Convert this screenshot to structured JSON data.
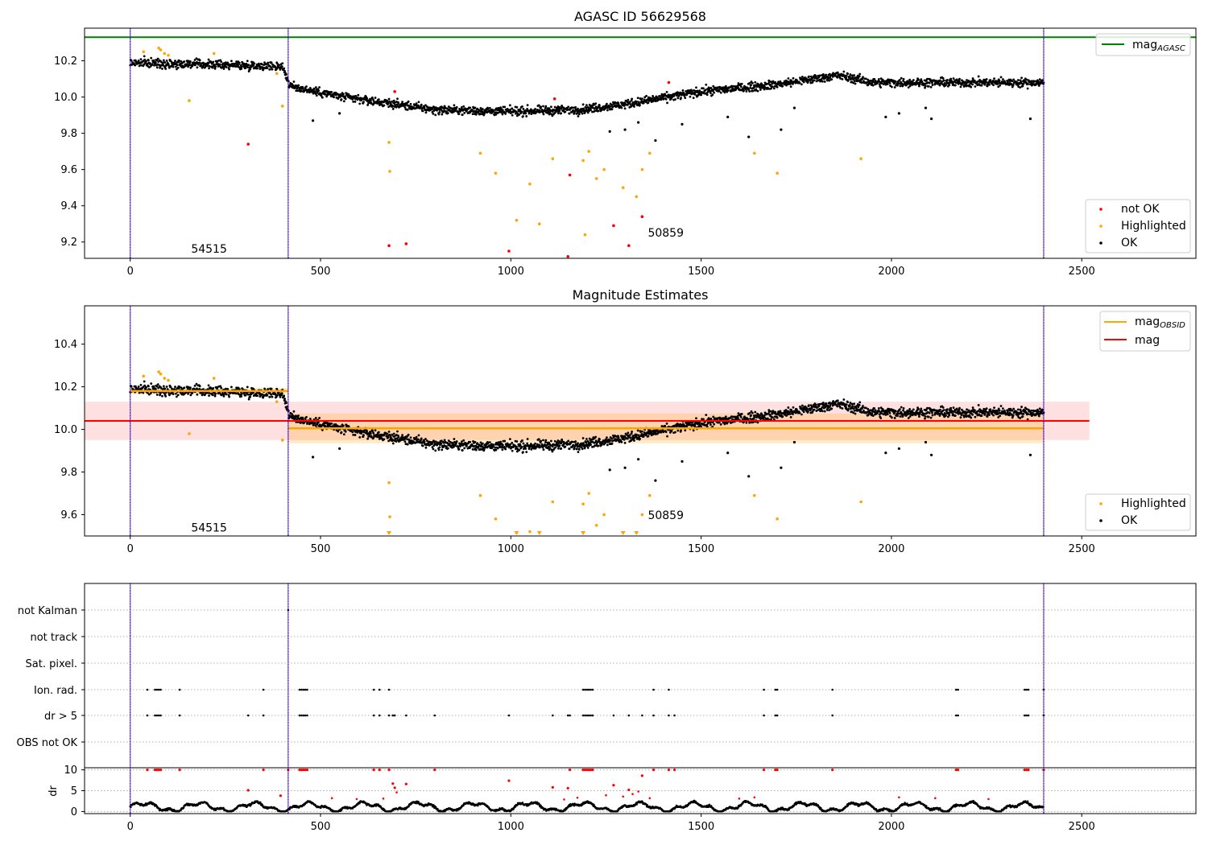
{
  "chart_data": [
    {
      "type": "scatter",
      "title": "AGASC ID 56629568",
      "xlim": [
        -120,
        2800
      ],
      "ylim": [
        9.11,
        10.38
      ],
      "x_ticks": [
        0,
        500,
        1000,
        1500,
        2000,
        2500
      ],
      "y_ticks": [
        9.2,
        9.4,
        9.6,
        9.8,
        10.0,
        10.2
      ],
      "y_tick_labels": [
        "9.2",
        "9.4",
        "9.6",
        "9.8",
        "10.0",
        "10.2"
      ],
      "vlines": [
        0,
        415,
        2400
      ],
      "hline": {
        "name": "mag_AGASC",
        "y": 10.33,
        "color": "#008000"
      },
      "obs_labels": [
        {
          "text": "54515",
          "x": 160,
          "y": 9.14
        },
        {
          "text": "50859",
          "x": 1360,
          "y": 9.23
        }
      ],
      "legend_top": [
        {
          "label": "mag",
          "sub": "AGASC",
          "color": "#008000",
          "kind": "line"
        }
      ],
      "legend_bottom": [
        {
          "label": "not OK",
          "color": "#ff0000",
          "kind": "dot"
        },
        {
          "label": "Highlighted",
          "color": "#ffa500",
          "kind": "dot"
        },
        {
          "label": "OK",
          "color": "#000000",
          "kind": "dot"
        }
      ],
      "series": [
        {
          "name": "not OK",
          "color": "#ff0000",
          "x": [
            310,
            680,
            695,
            725,
            995,
            1115,
            1150,
            1155,
            1270,
            1310,
            1345,
            1415
          ],
          "y": [
            9.74,
            9.18,
            10.03,
            9.19,
            9.15,
            9.99,
            9.12,
            9.57,
            9.29,
            9.18,
            9.34,
            10.08
          ]
        },
        {
          "name": "Highlighted",
          "color": "#ffa500",
          "x": [
            35,
            75,
            80,
            90,
            100,
            155,
            220,
            385,
            400,
            680,
            682,
            920,
            960,
            1050,
            1015,
            1075,
            1110,
            1190,
            1205,
            1225,
            1245,
            1295,
            1330,
            1345,
            1365,
            1640,
            1700,
            1920,
            1195
          ],
          "y": [
            10.25,
            10.27,
            10.26,
            10.24,
            10.23,
            9.98,
            10.24,
            10.13,
            9.95,
            9.75,
            9.59,
            9.69,
            9.58,
            9.52,
            9.32,
            9.3,
            9.66,
            9.65,
            9.7,
            9.55,
            9.6,
            9.5,
            9.45,
            9.6,
            9.69,
            9.69,
            9.58,
            9.66,
            9.24
          ]
        },
        {
          "name": "OK",
          "color": "#000000",
          "model": "trend",
          "trend_x": [
            0,
            400,
            420,
            560,
            800,
            1000,
            1180,
            1300,
            1500,
            1700,
            1860,
            1950,
            2150,
            2300,
            2400
          ],
          "trend_y": [
            10.19,
            10.17,
            10.06,
            10.0,
            9.93,
            9.92,
            9.93,
            9.96,
            10.03,
            10.07,
            10.12,
            10.08,
            10.08,
            10.08,
            10.08
          ],
          "outliers_x": [
            480,
            550,
            1260,
            1300,
            1335,
            1380,
            1450,
            1570,
            1625,
            1710,
            1745,
            1985,
            2020,
            2090,
            2105,
            2365
          ],
          "outliers_y": [
            9.87,
            9.91,
            9.81,
            9.82,
            9.86,
            9.76,
            9.85,
            9.89,
            9.78,
            9.82,
            9.94,
            9.89,
            9.91,
            9.94,
            9.88,
            9.88
          ]
        }
      ]
    },
    {
      "type": "scatter",
      "title": "Magnitude Estimates",
      "xlim": [
        -120,
        2800
      ],
      "ylim": [
        9.5,
        10.58
      ],
      "x_ticks": [
        0,
        500,
        1000,
        1500,
        2000,
        2500
      ],
      "y_ticks": [
        9.6,
        9.8,
        10.0,
        10.2,
        10.4
      ],
      "y_tick_labels": [
        "9.6",
        "9.8",
        "10.0",
        "10.2",
        "10.4"
      ],
      "vlines": [
        0,
        415,
        2400
      ],
      "obs_labels": [
        {
          "text": "54515",
          "x": 160,
          "y": 9.52
        },
        {
          "text": "50859",
          "x": 1360,
          "y": 9.58
        }
      ],
      "mag": {
        "y": 10.04,
        "band": [
          9.95,
          10.13
        ],
        "x_range": [
          -120,
          2520
        ],
        "color": "#ff0000"
      },
      "mag_obsid": [
        {
          "x_range": [
            0,
            415
          ],
          "y": 10.18,
          "band": [
            10.165,
            10.195
          ]
        },
        {
          "x_range": [
            415,
            2400
          ],
          "y": 10.005,
          "band": [
            9.935,
            10.075
          ]
        }
      ],
      "legend_top": [
        {
          "label": "mag",
          "sub": "OBSID",
          "color": "#ffa500",
          "kind": "line"
        },
        {
          "label": "mag",
          "sub": "",
          "color": "#ff0000",
          "kind": "line"
        }
      ],
      "legend_bottom": [
        {
          "label": "Highlighted",
          "color": "#ffa500",
          "kind": "dot"
        },
        {
          "label": "OK",
          "color": "#000000",
          "kind": "dot"
        }
      ],
      "offscale_markers_x": [
        680,
        1015,
        1075,
        1190,
        1295,
        1330
      ],
      "series": [
        {
          "name": "Highlighted",
          "color": "#ffa500",
          "x": [
            35,
            75,
            80,
            90,
            100,
            155,
            220,
            385,
            400,
            680,
            682,
            920,
            960,
            1050,
            1110,
            1190,
            1205,
            1225,
            1245,
            1345,
            1365,
            1640,
            1700,
            1920
          ],
          "y": [
            10.25,
            10.27,
            10.26,
            10.24,
            10.23,
            9.98,
            10.24,
            10.13,
            9.95,
            9.75,
            9.59,
            9.69,
            9.58,
            9.52,
            9.66,
            9.65,
            9.7,
            9.55,
            9.6,
            9.6,
            9.69,
            9.69,
            9.58,
            9.66
          ]
        },
        {
          "name": "OK",
          "color": "#000000",
          "model": "trend",
          "trend_x": [
            0,
            400,
            420,
            560,
            800,
            1000,
            1180,
            1300,
            1500,
            1700,
            1860,
            1950,
            2150,
            2300,
            2400
          ],
          "trend_y": [
            10.19,
            10.17,
            10.06,
            10.0,
            9.93,
            9.92,
            9.93,
            9.96,
            10.03,
            10.07,
            10.12,
            10.08,
            10.08,
            10.08,
            10.08
          ],
          "outliers_x": [
            480,
            550,
            1260,
            1300,
            1335,
            1380,
            1450,
            1570,
            1625,
            1710,
            1745,
            1985,
            2020,
            2090,
            2105,
            2365
          ],
          "outliers_y": [
            9.87,
            9.91,
            9.81,
            9.82,
            9.86,
            9.76,
            9.85,
            9.89,
            9.78,
            9.82,
            9.94,
            9.89,
            9.91,
            9.94,
            9.88,
            9.88
          ]
        }
      ]
    },
    {
      "type": "scatter",
      "title": "",
      "xlim": [
        -120,
        2800
      ],
      "x_ticks": [
        0,
        500,
        1000,
        1500,
        2000,
        2500
      ],
      "vlines": [
        0,
        415,
        2400
      ],
      "flag_rows": [
        "not Kalman",
        "not track",
        "Sat. pixel.",
        "Ion. rad.",
        "dr > 5",
        "OBS not OK"
      ],
      "flags": {
        "not Kalman": [
          415
        ],
        "not track": [],
        "Sat. pixel.": [],
        "Ion. rad.": [
          45,
          65,
          70,
          75,
          80,
          130,
          350,
          445,
          450,
          455,
          460,
          465,
          640,
          655,
          680,
          1190,
          1195,
          1200,
          1205,
          1210,
          1215,
          1375,
          1415,
          1665,
          1695,
          1700,
          1845,
          2170,
          2175,
          2350,
          2355,
          2360,
          2400
        ],
        "dr > 5": [
          45,
          65,
          70,
          75,
          80,
          130,
          310,
          350,
          445,
          450,
          455,
          460,
          465,
          640,
          655,
          680,
          690,
          695,
          725,
          800,
          995,
          1110,
          1150,
          1155,
          1190,
          1195,
          1200,
          1205,
          1210,
          1215,
          1270,
          1310,
          1345,
          1375,
          1415,
          1430,
          1665,
          1695,
          1700,
          1845,
          2170,
          2175,
          2350,
          2355,
          2360,
          2400
        ],
        "OBS not OK": []
      },
      "dr": {
        "ylabel": "dr",
        "ylim": [
          -0.5,
          10.5
        ],
        "y_ticks": [
          0,
          5,
          10
        ],
        "y_tick_labels": [
          "0",
          "5",
          "10"
        ],
        "bulk_color": "#000000",
        "flag_color": "#ff0000",
        "flagged_x": [
          45,
          65,
          70,
          75,
          80,
          130,
          310,
          350,
          395,
          415,
          445,
          450,
          455,
          460,
          465,
          640,
          655,
          680,
          690,
          695,
          725,
          800,
          995,
          1110,
          1150,
          1155,
          1190,
          1195,
          1200,
          1205,
          1210,
          1215,
          1270,
          1310,
          1345,
          1375,
          1415,
          1430,
          1665,
          1695,
          1700,
          1845,
          2170,
          2175,
          2350,
          2355,
          2360,
          2400
        ],
        "flagged_y": [
          10,
          10,
          10,
          10,
          10,
          10,
          5.1,
          10,
          3.8,
          10,
          10,
          10,
          10,
          10,
          10,
          10,
          10,
          10,
          6.7,
          5.7,
          6.6,
          10,
          7.4,
          5.8,
          5.6,
          10,
          10,
          10,
          10,
          10,
          10,
          10,
          6.3,
          5.2,
          8.6,
          10,
          10,
          10,
          10,
          10,
          10,
          10,
          10,
          10,
          10,
          10,
          10,
          10
        ],
        "mid_x": [
          530,
          595,
          665,
          700,
          1140,
          1175,
          1250,
          1295,
          1320,
          1335,
          1365,
          1600,
          1640,
          2020,
          2115,
          2255
        ],
        "mid_y": [
          3.2,
          3.0,
          3.1,
          4.6,
          2.9,
          3.3,
          3.9,
          3.6,
          4.2,
          4.8,
          3.2,
          3.1,
          3.4,
          3.4,
          3.2,
          3.0
        ]
      }
    }
  ]
}
